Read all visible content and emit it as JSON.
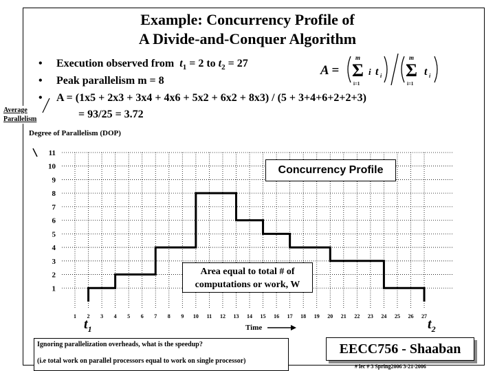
{
  "title": {
    "line1": "Example: Concurrency Profile of",
    "line2": "A Divide-and-Conquer Algorithm"
  },
  "bullets": [
    {
      "text": "Execution observed from"
    },
    {
      "text": "Peak parallelism  m = 8"
    },
    {
      "text": "A =  (1x5 + 2x3 + 3x4 + 4x6 + 5x2 + 6x2 + 8x3) / (5 + 3+4+6+2+2+3)"
    }
  ],
  "bullet1_parts": {
    "t1": "t",
    "t1sub": "1",
    "eq1": " = 2  to  ",
    "t2": "t",
    "t2sub": "2",
    "eq2": " = 27"
  },
  "result_line": "= 93/25  = 3.72",
  "formula": {
    "a": "A =",
    "i": "i",
    "t": "t",
    "sub_i": "i",
    "m": "m",
    "lower": "i=1"
  },
  "average_label": {
    "line1": "Average",
    "line2": "Parallelism"
  },
  "dop_label": "Degree of Parallelism (DOP)",
  "concurrency_label": "Concurrency Profile",
  "area_label": {
    "line1": "Area equal to total # of",
    "line2": "computations or work, W"
  },
  "time_label": "Time",
  "t1_label": {
    "t": "t",
    "sub": "1"
  },
  "t2_label": {
    "t": "t",
    "sub": "2"
  },
  "bottom_box": {
    "line1": "Ignoring parallelization overheads, what is the speedup?",
    "line2": "(i.e total work on parallel processors equal to work on single processor)"
  },
  "course_label": "EECC756 - Shaaban",
  "footer": "#  lec # 3    Spring2006   3-21-2006",
  "chart_data": {
    "type": "line",
    "title": "",
    "xlabel": "Time",
    "ylabel": "Degree of Parallelism (DOP)",
    "x_ticks": [
      1,
      2,
      3,
      4,
      5,
      6,
      7,
      8,
      9,
      10,
      11,
      12,
      13,
      14,
      15,
      16,
      17,
      18,
      19,
      20,
      21,
      22,
      23,
      24,
      25,
      26,
      27
    ],
    "y_ticks": [
      1,
      2,
      3,
      4,
      5,
      6,
      7,
      8,
      9,
      10,
      11
    ],
    "xlim": [
      1,
      27
    ],
    "ylim": [
      0,
      11
    ],
    "grid": true,
    "step_segments": [
      {
        "x_start": 2,
        "x_end": 4,
        "dop": 1
      },
      {
        "x_start": 4,
        "x_end": 7,
        "dop": 2
      },
      {
        "x_start": 7,
        "x_end": 10,
        "dop": 4
      },
      {
        "x_start": 10,
        "x_end": 13,
        "dop": 8
      },
      {
        "x_start": 13,
        "x_end": 15,
        "dop": 6
      },
      {
        "x_start": 15,
        "x_end": 17,
        "dop": 5
      },
      {
        "x_start": 17,
        "x_end": 20,
        "dop": 4
      },
      {
        "x_start": 20,
        "x_end": 24,
        "dop": 3
      },
      {
        "x_start": 24,
        "x_end": 27,
        "dop": 1
      }
    ]
  }
}
